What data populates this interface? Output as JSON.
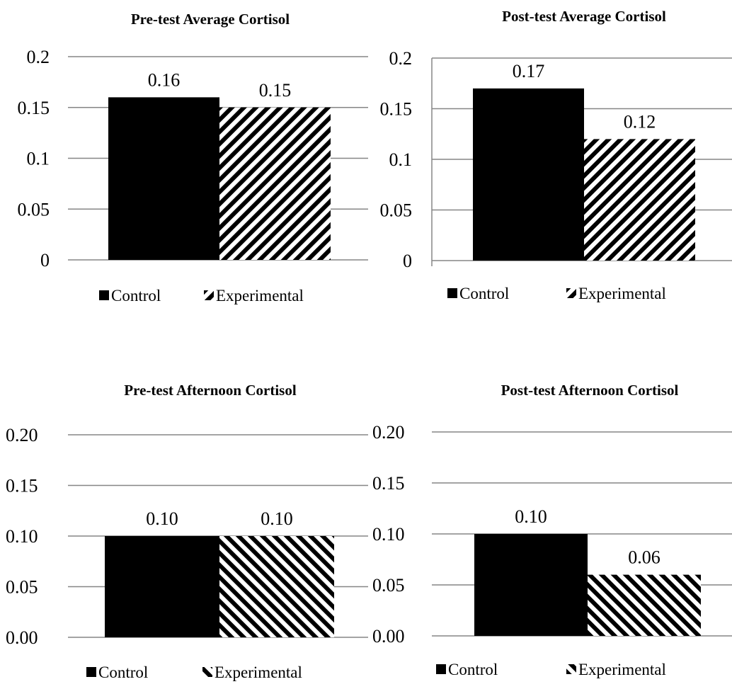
{
  "chart_data": [
    {
      "type": "bar",
      "title": "Pre-test Average Cortisol",
      "categories": [
        "Control",
        "Experimental"
      ],
      "values": [
        0.16,
        0.15
      ],
      "data_labels": [
        "0.16",
        "0.15"
      ],
      "yticks": [
        "0",
        "0.05",
        "0.1",
        "0.15",
        "0.2"
      ],
      "ylim": [
        0,
        0.2
      ],
      "grid": true,
      "legend": [
        "Control",
        "Experimental"
      ],
      "legend_position": "bottom",
      "fills": [
        "solid-black",
        "diagonal-hatch-right"
      ]
    },
    {
      "type": "bar",
      "title": "Post-test Average Cortisol",
      "categories": [
        "Control",
        "Experimental"
      ],
      "values": [
        0.17,
        0.12
      ],
      "data_labels": [
        "0.17",
        "0.12"
      ],
      "yticks": [
        "0",
        "0.05",
        "0.1",
        "0.15",
        "0.2"
      ],
      "ylim": [
        0,
        0.2
      ],
      "grid": true,
      "legend": [
        "Control",
        "Experimental"
      ],
      "legend_position": "bottom",
      "fills": [
        "solid-black",
        "diagonal-hatch-right"
      ]
    },
    {
      "type": "bar",
      "title": "Pre-test Afternoon Cortisol",
      "categories": [
        "Control",
        "Experimental"
      ],
      "values": [
        0.1,
        0.1
      ],
      "data_labels": [
        "0.10",
        "0.10"
      ],
      "yticks": [
        "0.00",
        "0.05",
        "0.10",
        "0.15",
        "0.20"
      ],
      "ylim": [
        0,
        0.2
      ],
      "grid": true,
      "legend": [
        "Control",
        "Experimental"
      ],
      "legend_position": "bottom",
      "fills": [
        "solid-black",
        "diagonal-hatch-left"
      ]
    },
    {
      "type": "bar",
      "title": "Post-test Afternoon Cortisol",
      "categories": [
        "Control",
        "Experimental"
      ],
      "values": [
        0.1,
        0.06
      ],
      "data_labels": [
        "0.10",
        "0.06"
      ],
      "yticks": [
        "0.00",
        "0.05",
        "0.10",
        "0.15",
        "0.20"
      ],
      "ylim": [
        0,
        0.2
      ],
      "grid": true,
      "legend": [
        "Control",
        "Experimental"
      ],
      "legend_position": "bottom",
      "fills": [
        "solid-black",
        "diagonal-hatch-left"
      ]
    }
  ]
}
